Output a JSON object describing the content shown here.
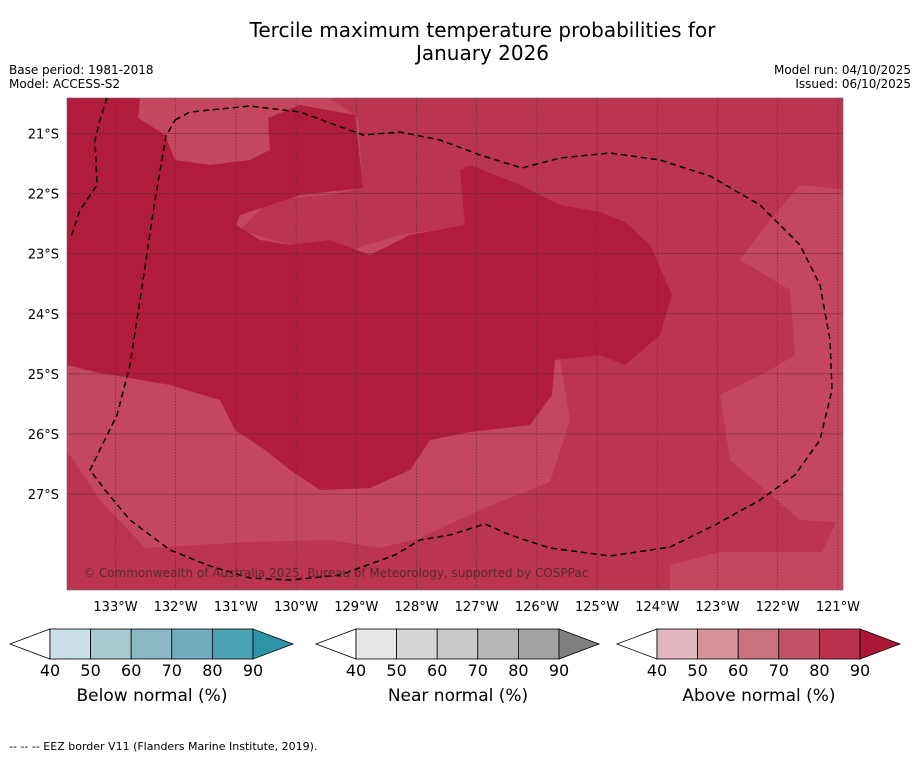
{
  "title_line1": "Tercile maximum temperature probabilities for",
  "title_line2": "January 2026",
  "meta": {
    "base_period": "Base period: 1981-2018",
    "model": "Model: ACCESS-S2",
    "model_run": "Model run: 04/10/2025",
    "issued": "Issued: 06/10/2025"
  },
  "copyright": "© Commonwealth of Australia 2025, Bureau of Meteorology, supported by COSPPac",
  "map": {
    "lat_labels": [
      "21°S",
      "22°S",
      "23°S",
      "24°S",
      "25°S",
      "26°S",
      "27°S"
    ],
    "lon_labels": [
      "133°W",
      "132°W",
      "131°W",
      "130°W",
      "129°W",
      "128°W",
      "127°W",
      "126°W",
      "125°W",
      "124°W",
      "123°W",
      "122°W",
      "121°W"
    ],
    "colors": {
      "above_70": "#c5475f",
      "above_80": "#bb3450",
      "above_90": "#b01c3b",
      "gridline": "#5a2a33",
      "eez_border": "#000000"
    }
  },
  "colorbars": [
    {
      "label": "Below normal (%)",
      "ticks": [
        "40",
        "50",
        "60",
        "70",
        "80",
        "90"
      ],
      "colors": [
        "#ffffff",
        "#c9e1e6",
        "#a7c8ce",
        "#8bb9c3",
        "#6fadbc",
        "#4aa1b2",
        "#2b94a6"
      ]
    },
    {
      "label": "Near normal (%)",
      "ticks": [
        "40",
        "50",
        "60",
        "70",
        "80",
        "90"
      ],
      "colors": [
        "#ffffff",
        "#e6e6e6",
        "#d6d6d6",
        "#c8c8c8",
        "#b8b8b8",
        "#a3a3a3",
        "#7f7f7f"
      ]
    },
    {
      "label": "Above normal (%)",
      "ticks": [
        "40",
        "50",
        "60",
        "70",
        "80",
        "90"
      ],
      "colors": [
        "#ffffff",
        "#e2b6bf",
        "#d6929d",
        "#cb727f",
        "#c05366",
        "#b8324f",
        "#ac1735"
      ]
    }
  ],
  "footnote": "--  --  -- EEZ border V11 (Flanders Marine Institute, 2019)."
}
